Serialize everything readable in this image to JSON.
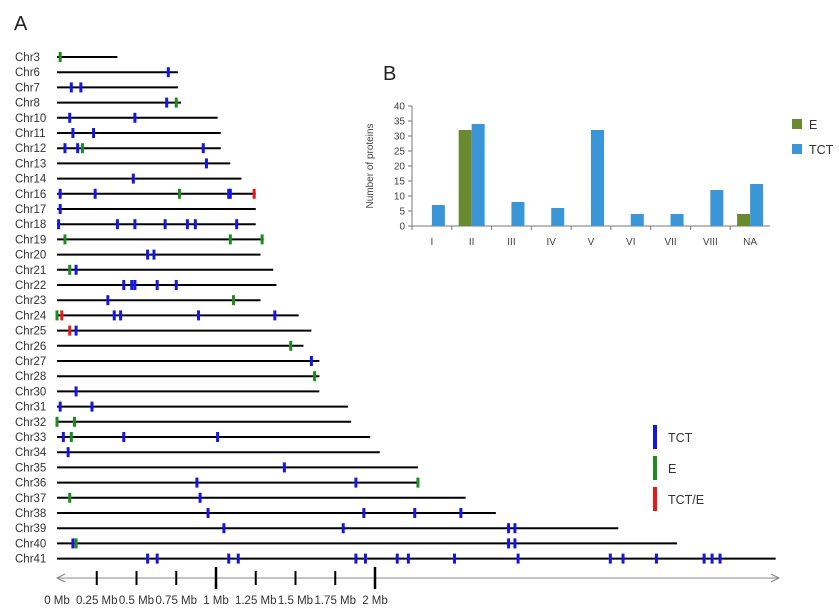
{
  "panel_labels": {
    "a": "A",
    "b": "B"
  },
  "chart_data": [
    {
      "type": "chromosome-map",
      "chromosomes": [
        {
          "name": "Chr3",
          "length": 0.38,
          "markers": [
            {
              "pos": 0.02,
              "type": "E"
            }
          ]
        },
        {
          "name": "Chr6",
          "length": 0.76,
          "markers": [
            {
              "pos": 0.7,
              "type": "TCT"
            }
          ]
        },
        {
          "name": "Chr7",
          "length": 0.76,
          "markers": [
            {
              "pos": 0.09,
              "type": "TCT"
            },
            {
              "pos": 0.15,
              "type": "TCT"
            }
          ]
        },
        {
          "name": "Chr8",
          "length": 0.78,
          "markers": [
            {
              "pos": 0.69,
              "type": "TCT"
            },
            {
              "pos": 0.75,
              "type": "E"
            }
          ]
        },
        {
          "name": "Chr10",
          "length": 1.01,
          "markers": [
            {
              "pos": 0.08,
              "type": "TCT"
            },
            {
              "pos": 0.49,
              "type": "TCT"
            }
          ]
        },
        {
          "name": "Chr11",
          "length": 1.03,
          "markers": [
            {
              "pos": 0.1,
              "type": "TCT"
            },
            {
              "pos": 0.23,
              "type": "TCT"
            }
          ]
        },
        {
          "name": "Chr12",
          "length": 1.03,
          "markers": [
            {
              "pos": 0.05,
              "type": "TCT"
            },
            {
              "pos": 0.13,
              "type": "TCT"
            },
            {
              "pos": 0.16,
              "type": "E"
            },
            {
              "pos": 0.92,
              "type": "TCT"
            }
          ]
        },
        {
          "name": "Chr13",
          "length": 1.09,
          "markers": [
            {
              "pos": 0.94,
              "type": "TCT"
            }
          ]
        },
        {
          "name": "Chr14",
          "length": 1.16,
          "markers": [
            {
              "pos": 0.48,
              "type": "TCT"
            }
          ]
        },
        {
          "name": "Chr16",
          "length": 1.25,
          "markers": [
            {
              "pos": 0.02,
              "type": "TCT"
            },
            {
              "pos": 0.24,
              "type": "TCT"
            },
            {
              "pos": 0.77,
              "type": "E"
            },
            {
              "pos": 1.08,
              "type": "TCT"
            },
            {
              "pos": 1.09,
              "type": "TCT"
            },
            {
              "pos": 1.24,
              "type": "TCT/E"
            }
          ]
        },
        {
          "name": "Chr17",
          "length": 1.25,
          "markers": [
            {
              "pos": 0.02,
              "type": "TCT"
            }
          ]
        },
        {
          "name": "Chr18",
          "length": 1.25,
          "markers": [
            {
              "pos": 0.01,
              "type": "TCT"
            },
            {
              "pos": 0.38,
              "type": "TCT"
            },
            {
              "pos": 0.49,
              "type": "TCT"
            },
            {
              "pos": 0.68,
              "type": "TCT"
            },
            {
              "pos": 0.82,
              "type": "TCT"
            },
            {
              "pos": 0.87,
              "type": "TCT"
            },
            {
              "pos": 1.13,
              "type": "TCT"
            }
          ]
        },
        {
          "name": "Chr19",
          "length": 1.3,
          "markers": [
            {
              "pos": 0.05,
              "type": "E"
            },
            {
              "pos": 1.09,
              "type": "E"
            },
            {
              "pos": 1.29,
              "type": "E"
            }
          ]
        },
        {
          "name": "Chr20",
          "length": 1.28,
          "markers": [
            {
              "pos": 0.57,
              "type": "TCT"
            },
            {
              "pos": 0.61,
              "type": "TCT"
            }
          ]
        },
        {
          "name": "Chr21",
          "length": 1.36,
          "markers": [
            {
              "pos": 0.08,
              "type": "E"
            },
            {
              "pos": 0.12,
              "type": "TCT"
            }
          ]
        },
        {
          "name": "Chr22",
          "length": 1.38,
          "markers": [
            {
              "pos": 0.42,
              "type": "TCT"
            },
            {
              "pos": 0.47,
              "type": "TCT"
            },
            {
              "pos": 0.49,
              "type": "TCT"
            },
            {
              "pos": 0.63,
              "type": "TCT"
            },
            {
              "pos": 0.75,
              "type": "TCT"
            }
          ]
        },
        {
          "name": "Chr23",
          "length": 1.28,
          "markers": [
            {
              "pos": 0.32,
              "type": "TCT"
            },
            {
              "pos": 1.11,
              "type": "E"
            }
          ]
        },
        {
          "name": "Chr24",
          "length": 1.52,
          "markers": [
            {
              "pos": 0.0,
              "type": "E"
            },
            {
              "pos": 0.03,
              "type": "TCT/E"
            },
            {
              "pos": 0.36,
              "type": "TCT"
            },
            {
              "pos": 0.4,
              "type": "TCT"
            },
            {
              "pos": 0.89,
              "type": "TCT"
            },
            {
              "pos": 1.37,
              "type": "TCT"
            }
          ]
        },
        {
          "name": "Chr25",
          "length": 1.6,
          "markers": [
            {
              "pos": 0.08,
              "type": "TCT/E"
            },
            {
              "pos": 0.12,
              "type": "TCT"
            }
          ]
        },
        {
          "name": "Chr26",
          "length": 1.55,
          "markers": [
            {
              "pos": 1.47,
              "type": "E"
            }
          ]
        },
        {
          "name": "Chr27",
          "length": 1.65,
          "markers": [
            {
              "pos": 1.6,
              "type": "TCT"
            }
          ]
        },
        {
          "name": "Chr28",
          "length": 1.65,
          "markers": [
            {
              "pos": 1.62,
              "type": "E"
            }
          ]
        },
        {
          "name": "Chr30",
          "length": 1.65,
          "markers": [
            {
              "pos": 0.12,
              "type": "TCT"
            }
          ]
        },
        {
          "name": "Chr31",
          "length": 1.83,
          "markers": [
            {
              "pos": 0.02,
              "type": "TCT"
            },
            {
              "pos": 0.22,
              "type": "TCT"
            }
          ]
        },
        {
          "name": "Chr32",
          "length": 1.85,
          "markers": [
            {
              "pos": 0.0,
              "type": "E"
            },
            {
              "pos": 0.11,
              "type": "E"
            }
          ]
        },
        {
          "name": "Chr33",
          "length": 1.97,
          "markers": [
            {
              "pos": 0.04,
              "type": "TCT"
            },
            {
              "pos": 0.09,
              "type": "E"
            },
            {
              "pos": 0.42,
              "type": "TCT"
            },
            {
              "pos": 1.01,
              "type": "TCT"
            }
          ]
        },
        {
          "name": "Chr34",
          "length": 2.03,
          "markers": [
            {
              "pos": 0.07,
              "type": "TCT"
            }
          ]
        },
        {
          "name": "Chr35",
          "length": 2.27,
          "markers": [
            {
              "pos": 1.43,
              "type": "TCT"
            }
          ]
        },
        {
          "name": "Chr36",
          "length": 2.27,
          "markers": [
            {
              "pos": 0.88,
              "type": "TCT"
            },
            {
              "pos": 1.88,
              "type": "TCT"
            },
            {
              "pos": 2.27,
              "type": "E"
            }
          ]
        },
        {
          "name": "Chr37",
          "length": 2.57,
          "markers": [
            {
              "pos": 0.08,
              "type": "E"
            },
            {
              "pos": 0.9,
              "type": "TCT"
            }
          ]
        },
        {
          "name": "Chr38",
          "length": 2.76,
          "markers": [
            {
              "pos": 0.95,
              "type": "TCT"
            },
            {
              "pos": 1.93,
              "type": "TCT"
            },
            {
              "pos": 2.25,
              "type": "TCT"
            },
            {
              "pos": 2.54,
              "type": "TCT"
            }
          ]
        },
        {
          "name": "Chr39",
          "length": 3.53,
          "markers": [
            {
              "pos": 1.05,
              "type": "TCT"
            },
            {
              "pos": 1.8,
              "type": "TCT"
            },
            {
              "pos": 2.84,
              "type": "TCT"
            },
            {
              "pos": 2.88,
              "type": "TCT"
            }
          ]
        },
        {
          "name": "Chr40",
          "length": 3.9,
          "markers": [
            {
              "pos": 0.1,
              "type": "TCT"
            },
            {
              "pos": 0.12,
              "type": "E"
            },
            {
              "pos": 2.84,
              "type": "TCT"
            },
            {
              "pos": 2.88,
              "type": "TCT"
            }
          ]
        },
        {
          "name": "Chr41",
          "length": 4.52,
          "markers": [
            {
              "pos": 0.57,
              "type": "TCT"
            },
            {
              "pos": 0.63,
              "type": "TCT"
            },
            {
              "pos": 1.08,
              "type": "TCT"
            },
            {
              "pos": 1.14,
              "type": "TCT"
            },
            {
              "pos": 1.88,
              "type": "TCT"
            },
            {
              "pos": 1.94,
              "type": "TCT"
            },
            {
              "pos": 2.14,
              "type": "TCT"
            },
            {
              "pos": 2.21,
              "type": "TCT"
            },
            {
              "pos": 2.5,
              "type": "TCT"
            },
            {
              "pos": 2.9,
              "type": "TCT"
            },
            {
              "pos": 3.48,
              "type": "TCT"
            },
            {
              "pos": 3.56,
              "type": "TCT"
            },
            {
              "pos": 3.77,
              "type": "TCT"
            },
            {
              "pos": 4.07,
              "type": "TCT"
            },
            {
              "pos": 4.12,
              "type": "TCT"
            },
            {
              "pos": 4.17,
              "type": "TCT"
            }
          ]
        }
      ],
      "x_ticks": [
        {
          "value": 0,
          "label": "0 Mb",
          "major": false
        },
        {
          "value": 0.25,
          "label": "0.25 Mb",
          "major": false
        },
        {
          "value": 0.5,
          "label": "0.5 Mb",
          "major": false
        },
        {
          "value": 0.75,
          "label": "0.75 Mb",
          "major": false
        },
        {
          "value": 1,
          "label": "1 Mb",
          "major": true
        },
        {
          "value": 1.25,
          "label": "1.25 Mb",
          "major": false
        },
        {
          "value": 1.5,
          "label": "1.5 Mb",
          "major": false
        },
        {
          "value": 1.75,
          "label": "1.75 Mb",
          "major": false
        },
        {
          "value": 2,
          "label": "2 Mb",
          "major": true
        }
      ],
      "legend": [
        {
          "label": "TCT",
          "color": "#1515e6"
        },
        {
          "label": "E",
          "color": "#1f8a1f"
        },
        {
          "label": "TCT/E",
          "color": "#e61a1a"
        }
      ]
    },
    {
      "type": "bar",
      "categories": [
        "I",
        "II",
        "III",
        "IV",
        "V",
        "VI",
        "VII",
        "VIII",
        "NA"
      ],
      "series": [
        {
          "name": "E",
          "color": "#6a8a32",
          "values": [
            0,
            32,
            0,
            0,
            0,
            0,
            0,
            0,
            4
          ]
        },
        {
          "name": "TCT",
          "color": "#3a96d6",
          "values": [
            7,
            34,
            8,
            6,
            32,
            4,
            4,
            12,
            14
          ]
        }
      ],
      "ylabel": "Number of proteins",
      "ylim": [
        0,
        40
      ],
      "yticks": [
        0,
        5,
        10,
        15,
        20,
        25,
        30,
        35,
        40
      ],
      "legend_position": "right"
    }
  ]
}
